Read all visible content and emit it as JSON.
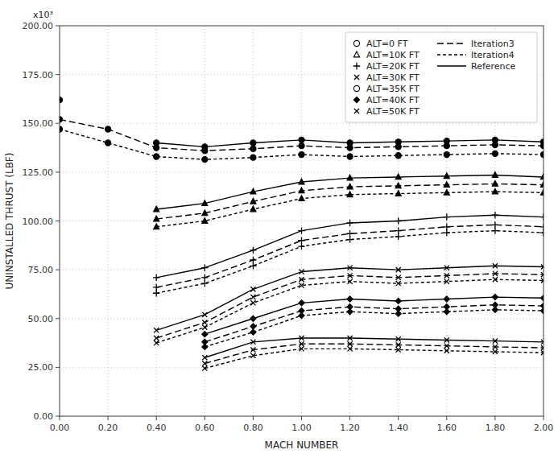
{
  "chart_data": {
    "type": "line",
    "xlabel": "MACH NUMBER",
    "ylabel": "UNINSTALLED THRUST (LBF)",
    "annotations": [
      {
        "text": "x10³"
      }
    ],
    "color": "#000000",
    "grid": true,
    "legend": "upper right",
    "xlim": [
      0.0,
      2.0
    ],
    "ylim": [
      0.0,
      200.0
    ],
    "xticks": [
      {
        "value": 0.0,
        "label": "0.00"
      },
      {
        "value": 0.2,
        "label": "0.20"
      },
      {
        "value": 0.4,
        "label": "0.40"
      },
      {
        "value": 0.6,
        "label": "0.60"
      },
      {
        "value": 0.8,
        "label": "0.80"
      },
      {
        "value": 1.0,
        "label": "1.00"
      },
      {
        "value": 1.2,
        "label": "1.20"
      },
      {
        "value": 1.4,
        "label": "1.40"
      },
      {
        "value": 1.6,
        "label": "1.60"
      },
      {
        "value": 1.8,
        "label": "1.80"
      },
      {
        "value": 2.0,
        "label": "2.00"
      }
    ],
    "yticks": [
      {
        "value": 0.0,
        "label": "0.00"
      },
      {
        "value": 25.0,
        "label": "25.00"
      },
      {
        "value": 50.0,
        "label": "50.00"
      },
      {
        "value": 75.0,
        "label": "75.00"
      },
      {
        "value": 100.0,
        "label": "100.00"
      },
      {
        "value": 125.0,
        "label": "125.00"
      },
      {
        "value": 150.0,
        "label": "150.00"
      },
      {
        "value": 175.0,
        "label": "175.00"
      },
      {
        "value": 200.0,
        "label": "200.00"
      }
    ],
    "x": [
      0.0,
      0.2,
      0.4,
      0.6,
      0.8,
      1.0,
      1.2,
      1.4,
      1.6,
      1.8,
      2.0
    ],
    "series": [
      {
        "line_style": "solid",
        "marker": "circle",
        "values": [
          162.0,
          null,
          140.0,
          138.0,
          140.0,
          141.5,
          140.0,
          140.5,
          141.0,
          141.5,
          140.5
        ]
      },
      {
        "line_style": "long-dash",
        "marker": "circle",
        "values": [
          152.0,
          147.0,
          137.5,
          136.0,
          137.0,
          138.5,
          137.5,
          138.0,
          138.5,
          139.0,
          138.5
        ]
      },
      {
        "line_style": "short-dash",
        "marker": "circle",
        "values": [
          147.0,
          140.0,
          133.0,
          131.5,
          132.5,
          134.0,
          133.0,
          133.5,
          134.0,
          134.5,
          134.0
        ]
      },
      {
        "line_style": "solid",
        "marker": "triangle",
        "values": [
          null,
          null,
          106.0,
          109.0,
          115.0,
          120.0,
          122.0,
          122.5,
          123.0,
          123.5,
          122.5
        ]
      },
      {
        "line_style": "long-dash",
        "marker": "triangle",
        "values": [
          null,
          null,
          101.0,
          104.0,
          110.0,
          115.5,
          117.5,
          118.0,
          118.5,
          119.0,
          118.5
        ]
      },
      {
        "line_style": "short-dash",
        "marker": "triangle",
        "values": [
          null,
          null,
          97.0,
          100.0,
          106.0,
          111.5,
          113.5,
          114.0,
          114.5,
          115.0,
          114.5
        ]
      },
      {
        "line_style": "solid",
        "marker": "plus",
        "values": [
          null,
          null,
          71.0,
          76.0,
          85.0,
          95.0,
          99.0,
          100.0,
          102.0,
          103.0,
          102.0
        ]
      },
      {
        "line_style": "long-dash",
        "marker": "plus",
        "values": [
          null,
          null,
          66.0,
          71.0,
          80.0,
          90.0,
          93.5,
          95.0,
          97.0,
          98.0,
          97.0
        ]
      },
      {
        "line_style": "short-dash",
        "marker": "plus",
        "values": [
          null,
          null,
          63.0,
          68.0,
          77.0,
          87.0,
          90.5,
          92.0,
          94.0,
          95.0,
          94.0
        ]
      },
      {
        "line_style": "solid",
        "marker": "x",
        "values": [
          null,
          null,
          44.0,
          52.0,
          65.0,
          74.0,
          76.0,
          75.0,
          76.0,
          77.0,
          76.5
        ]
      },
      {
        "line_style": "long-dash",
        "marker": "x",
        "values": [
          null,
          null,
          40.0,
          48.0,
          61.0,
          70.0,
          72.0,
          71.0,
          72.0,
          73.0,
          72.5
        ]
      },
      {
        "line_style": "short-dash",
        "marker": "x",
        "values": [
          null,
          null,
          37.5,
          45.5,
          58.0,
          67.0,
          69.0,
          68.0,
          69.0,
          70.0,
          69.5
        ]
      },
      {
        "line_style": "solid",
        "marker": "diamond",
        "values": [
          null,
          null,
          null,
          42.0,
          50.0,
          58.0,
          60.0,
          59.0,
          60.0,
          61.0,
          60.5
        ]
      },
      {
        "line_style": "long-dash",
        "marker": "diamond",
        "values": [
          null,
          null,
          null,
          38.0,
          46.0,
          54.0,
          56.0,
          55.0,
          56.0,
          57.0,
          56.5
        ]
      },
      {
        "line_style": "short-dash",
        "marker": "diamond",
        "values": [
          null,
          null,
          null,
          35.5,
          43.0,
          51.5,
          53.5,
          52.5,
          53.5,
          54.5,
          54.0
        ]
      },
      {
        "line_style": "solid",
        "marker": "x",
        "values": [
          null,
          null,
          null,
          30.0,
          38.0,
          40.0,
          40.0,
          39.5,
          39.0,
          38.5,
          38.0
        ]
      },
      {
        "line_style": "long-dash",
        "marker": "x",
        "values": [
          null,
          null,
          null,
          27.0,
          34.0,
          37.0,
          37.0,
          36.5,
          36.0,
          35.5,
          35.0
        ]
      },
      {
        "line_style": "short-dash",
        "marker": "x",
        "values": [
          null,
          null,
          null,
          24.5,
          31.0,
          34.5,
          34.5,
          34.0,
          33.5,
          33.0,
          32.5
        ]
      }
    ],
    "legend_entries": [
      {
        "name": "ALT=0 FT",
        "marker": "open-circle"
      },
      {
        "name": "ALT=10K FT",
        "marker": "open-triangle"
      },
      {
        "name": "ALT=20K FT",
        "marker": "plus"
      },
      {
        "name": "ALT=30K FT",
        "marker": "x"
      },
      {
        "name": "ALT=35K FT",
        "marker": "open-circle"
      },
      {
        "name": "ALT=40K FT",
        "marker": "diamond"
      },
      {
        "name": "ALT=50K FT",
        "marker": "x"
      },
      {
        "name": "Iteration3",
        "line_style": "long-dash"
      },
      {
        "name": "Iteration4",
        "line_style": "short-dash"
      },
      {
        "name": "Reference",
        "line_style": "solid"
      }
    ]
  }
}
